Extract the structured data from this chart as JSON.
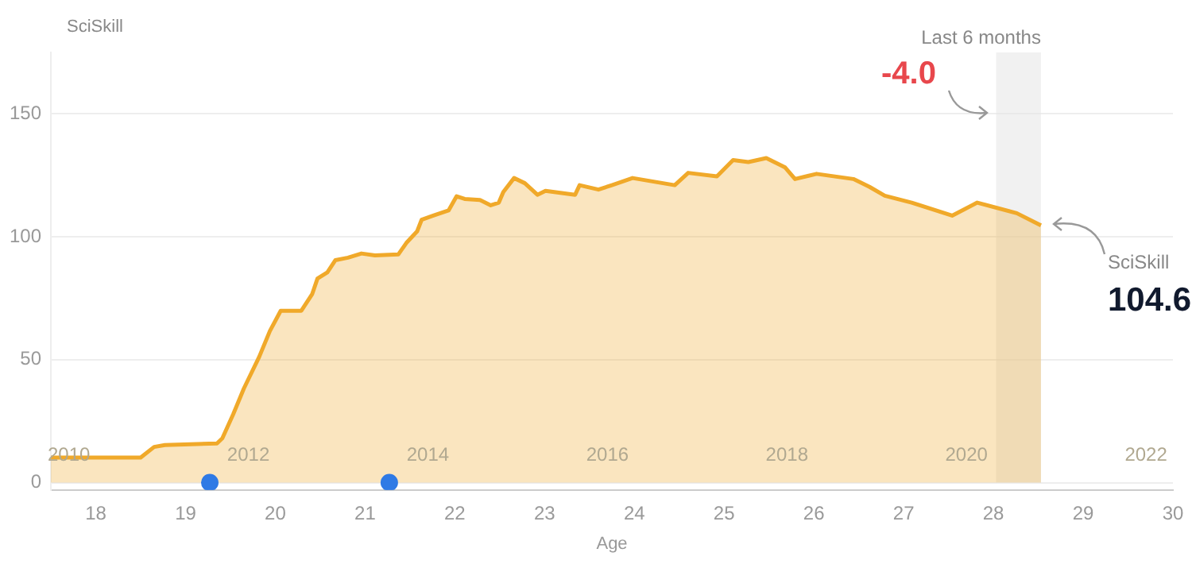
{
  "chart_data": {
    "type": "area",
    "ylabel": "SciSkill",
    "xlabel": "Age",
    "xlim": [
      17.5,
      30
    ],
    "xticks": [
      18,
      19,
      20,
      21,
      22,
      23,
      24,
      25,
      26,
      27,
      28,
      29,
      30
    ],
    "ylim": [
      -3,
      175
    ],
    "yticks": [
      0,
      50,
      100,
      150
    ],
    "x2lim": [
      2009.8,
      2022.3
    ],
    "x2ticks": [
      2010,
      2012,
      2014,
      2016,
      2018,
      2020,
      2022
    ],
    "grid": "y",
    "legend": false,
    "series": [
      {
        "color": "#f0a92a",
        "x": [
          17.5,
          18.5,
          18.65,
          18.77,
          19.35,
          19.41,
          19.53,
          19.65,
          19.82,
          19.94,
          20.06,
          20.29,
          20.41,
          20.47,
          20.58,
          20.67,
          20.81,
          20.96,
          21.11,
          21.37,
          21.46,
          21.58,
          21.63,
          21.76,
          21.93,
          22.02,
          22.11,
          22.28,
          22.4,
          22.49,
          22.54,
          22.66,
          22.78,
          22.92,
          23.01,
          23.34,
          23.39,
          23.6,
          23.75,
          23.98,
          24.45,
          24.6,
          24.92,
          25.1,
          25.27,
          25.47,
          25.68,
          25.79,
          26.03,
          26.44,
          26.62,
          26.79,
          27.09,
          27.54,
          27.82,
          28.26,
          28.53
        ],
        "values": [
          10.2,
          10.2,
          14.5,
          15.3,
          15.9,
          18,
          27.7,
          38.3,
          51.1,
          61.7,
          69.9,
          69.9,
          76.6,
          83,
          85.5,
          90.5,
          91.5,
          93.2,
          92.4,
          92.8,
          97.5,
          102.2,
          106.9,
          108.6,
          110.7,
          116.5,
          115.4,
          115,
          112.8,
          113.9,
          118.2,
          123.9,
          121.8,
          117.1,
          118.7,
          117.1,
          121,
          119.2,
          121,
          123.9,
          121,
          126,
          124.6,
          131.2,
          130.4,
          132,
          128.2,
          123.5,
          125.6,
          123.5,
          120.3,
          116.7,
          113.9,
          108.6,
          113.9,
          109.6,
          104.6
        ]
      },
      {
        "type": "scatter",
        "color": "#2f7ae5",
        "x": [
          19.27,
          21.27
        ],
        "values": [
          0,
          0
        ]
      }
    ],
    "bands": [
      {
        "axis": "x",
        "from": 28.03,
        "to": 28.53,
        "label": "Last 6 months",
        "color": "#e6e6e6"
      }
    ],
    "annotations": [
      "-4.0",
      {
        "text": "SciSkill",
        "x": 28.53,
        "y": 104.6
      },
      {
        "text": "104.6",
        "x": 28.53,
        "y": 104.6
      }
    ]
  }
}
